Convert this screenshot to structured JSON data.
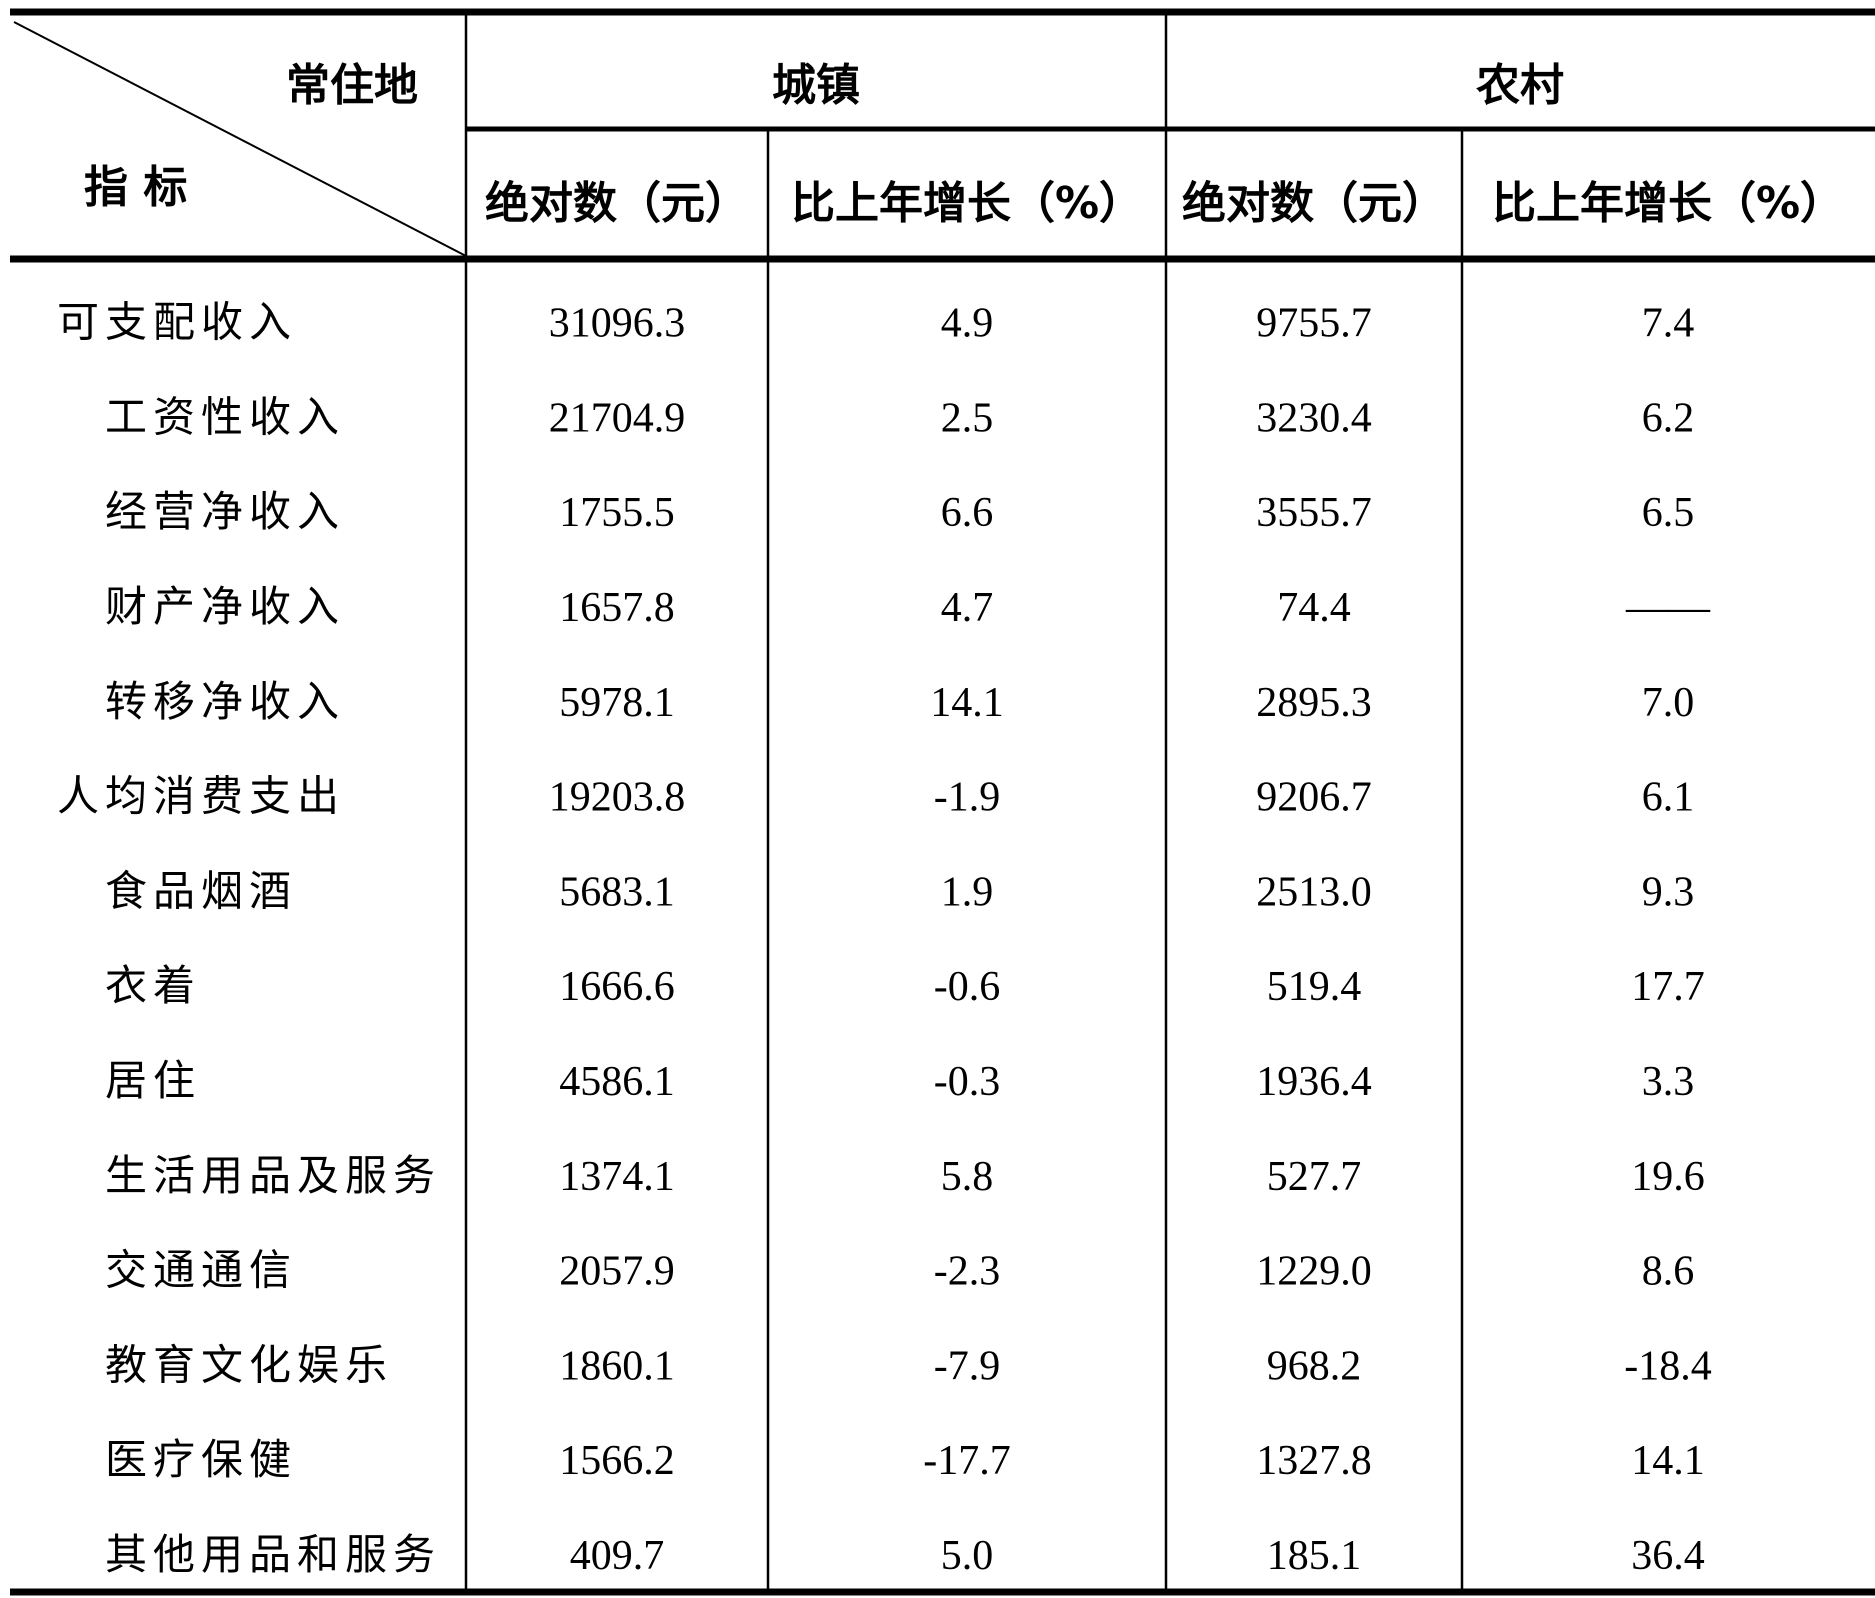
{
  "table": {
    "corner": {
      "top": "常住地",
      "bottom": "指 标"
    },
    "groups": [
      "城镇",
      "农村"
    ],
    "subheaders": [
      "绝对数（元）",
      "比上年增长（%）",
      "绝对数（元）",
      "比上年增长（%）"
    ],
    "rows": [
      {
        "label": "可支配收入",
        "cells": [
          "31096.3",
          "4.9",
          "9755.7",
          "7.4"
        ],
        "items": [
          {
            "label": "工资性收入",
            "cells": [
              "21704.9",
              "2.5",
              "3230.4",
              "6.2"
            ]
          },
          {
            "label": "经营净收入",
            "cells": [
              "1755.5",
              "6.6",
              "3555.7",
              "6.5"
            ]
          },
          {
            "label": "财产净收入",
            "cells": [
              "1657.8",
              "4.7",
              "74.4",
              "——"
            ]
          },
          {
            "label": "转移净收入",
            "cells": [
              "5978.1",
              "14.1",
              "2895.3",
              "7.0"
            ]
          }
        ]
      },
      {
        "label": "人均消费支出",
        "cells": [
          "19203.8",
          "-1.9",
          "9206.7",
          "6.1"
        ],
        "items": [
          {
            "label": "食品烟酒",
            "cells": [
              "5683.1",
              "1.9",
              "2513.0",
              "9.3"
            ]
          },
          {
            "label": "衣着",
            "cells": [
              "1666.6",
              "-0.6",
              "519.4",
              "17.7"
            ]
          },
          {
            "label": "居住",
            "cells": [
              "4586.1",
              "-0.3",
              "1936.4",
              "3.3"
            ]
          },
          {
            "label": "生活用品及服务",
            "cells": [
              "1374.1",
              "5.8",
              "527.7",
              "19.6"
            ]
          },
          {
            "label": "交通通信",
            "cells": [
              "2057.9",
              "-2.3",
              "1229.0",
              "8.6"
            ]
          },
          {
            "label": "教育文化娱乐",
            "cells": [
              "1860.1",
              "-7.9",
              "968.2",
              "-18.4"
            ]
          },
          {
            "label": "医疗保健",
            "cells": [
              "1566.2",
              "-17.7",
              "1327.8",
              "14.1"
            ]
          },
          {
            "label": "其他用品和服务",
            "cells": [
              "409.7",
              "5.0",
              "185.1",
              "36.4"
            ]
          }
        ]
      }
    ]
  }
}
